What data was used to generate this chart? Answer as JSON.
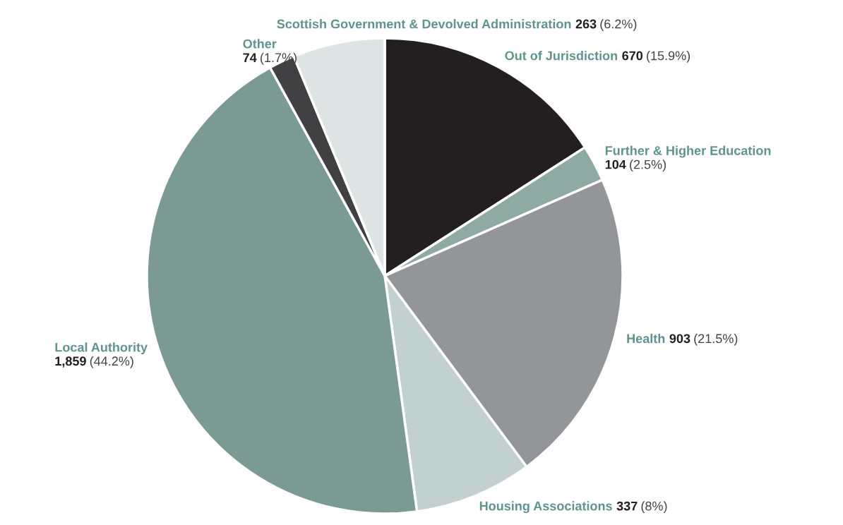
{
  "chart_data": {
    "type": "pie",
    "categories": [
      "Out of Jurisdiction",
      "Further & Higher Education",
      "Health",
      "Housing Associations",
      "Local Authority",
      "Other",
      "Scottish Government & Devolved Administration"
    ],
    "values": [
      670,
      104,
      903,
      337,
      1859,
      74,
      263
    ],
    "value_labels": [
      "670 (15.9%)",
      "104 (2.5%)",
      "903 (21.5%)",
      "337 (8%)",
      "1,859 (44.2%)",
      "74 (1.7%)",
      "263 (6.2%)"
    ],
    "colors": [
      "#231f20",
      "#8faaa3",
      "#939598",
      "#c2d1cf",
      "#7a9a93",
      "#414042",
      "#dde4e3"
    ]
  }
}
